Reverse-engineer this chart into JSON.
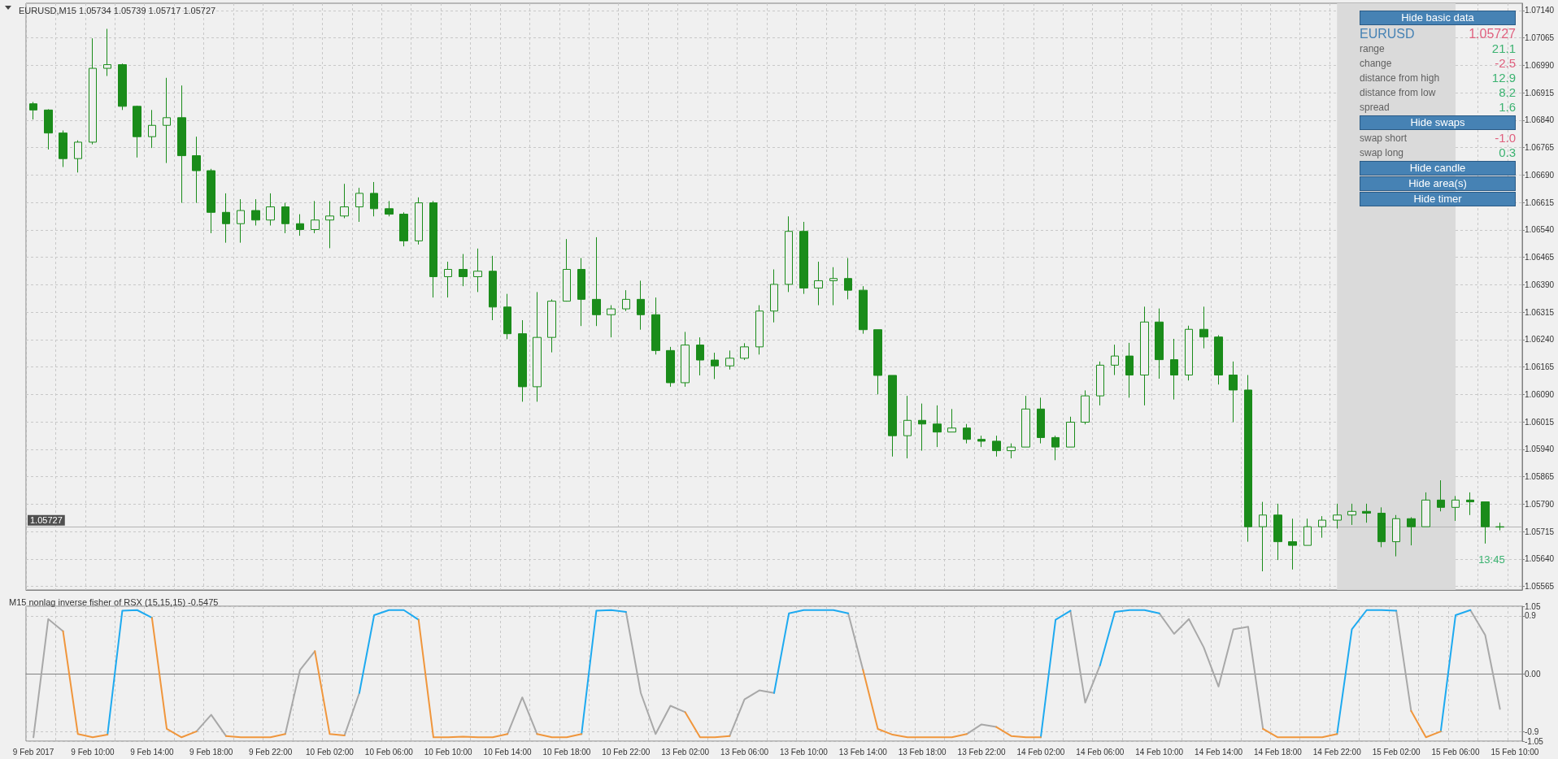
{
  "chart_data": [
    {
      "type": "candlestick",
      "title": "EURUSD,M15 1.05734 1.05739 1.05717 1.05727",
      "color": "#1a8c1a",
      "tick_labels": "y",
      "grid": true,
      "categories": [
        "9 Feb 2017",
        null,
        null,
        null,
        "9 Feb 10:00",
        null,
        null,
        null,
        "9 Feb 14:00",
        null,
        null,
        null,
        "9 Feb 18:00",
        null,
        null,
        null,
        "9 Feb 22:00",
        null,
        null,
        null,
        "10 Feb 02:00",
        null,
        null,
        null,
        "10 Feb 06:00",
        null,
        null,
        null,
        "10 Feb 10:00",
        null,
        null,
        null,
        "10 Feb 14:00",
        null,
        null,
        null,
        "10 Feb 18:00",
        null,
        null,
        null,
        "10 Feb 22:00",
        null,
        null,
        null,
        "13 Feb 02:00",
        null,
        null,
        null,
        "13 Feb 06:00",
        null,
        null,
        null,
        "13 Feb 10:00",
        null,
        null,
        null,
        "13 Feb 14:00",
        null,
        null,
        null,
        "13 Feb 18:00",
        null,
        null,
        null,
        "13 Feb 22:00",
        null,
        null,
        null,
        "14 Feb 02:00",
        null,
        null,
        null,
        "14 Feb 06:00",
        null,
        null,
        null,
        "14 Feb 10:00",
        null,
        null,
        null,
        "14 Feb 14:00",
        null,
        null,
        null,
        "14 Feb 18:00",
        null,
        null,
        null,
        "14 Feb 22:00",
        null,
        null,
        null,
        "15 Feb 02:00",
        null,
        null,
        null,
        "15 Feb 06:00",
        null,
        null,
        null,
        "15 Feb 10:00"
      ],
      "ohlc": [
        [
          1.06885,
          1.0689,
          1.06842,
          1.06868
        ],
        [
          1.06868,
          1.0687,
          1.0676,
          1.06805
        ],
        [
          1.06805,
          1.06812,
          1.06712,
          1.06735
        ],
        [
          1.06735,
          1.06785,
          1.06697,
          1.0678
        ],
        [
          1.0678,
          1.07064,
          1.06774,
          1.06982
        ],
        [
          1.06982,
          1.0709,
          1.06961,
          1.06992
        ],
        [
          1.06992,
          1.06995,
          1.06868,
          1.06878
        ],
        [
          1.06878,
          1.0688,
          1.06738,
          1.06795
        ],
        [
          1.06795,
          1.06868,
          1.06764,
          1.06826
        ],
        [
          1.06826,
          1.06956,
          1.06723,
          1.06847
        ],
        [
          1.06847,
          1.06935,
          1.06614,
          1.06743
        ],
        [
          1.06743,
          1.06795,
          1.06614,
          1.06702
        ],
        [
          1.06702,
          1.06707,
          1.06531,
          1.06588
        ],
        [
          1.06588,
          1.0664,
          1.06505,
          1.06557
        ],
        [
          1.06557,
          1.06624,
          1.06505,
          1.06593
        ],
        [
          1.06593,
          1.06624,
          1.06552,
          1.06567
        ],
        [
          1.06567,
          1.0664,
          1.06552,
          1.06603
        ],
        [
          1.06603,
          1.06614,
          1.06531,
          1.06557
        ],
        [
          1.06557,
          1.06583,
          1.06524,
          1.06541
        ],
        [
          1.06541,
          1.06619,
          1.06531,
          1.06567
        ],
        [
          1.06567,
          1.06619,
          1.0649,
          1.06578
        ],
        [
          1.06578,
          1.06666,
          1.06572,
          1.06603
        ],
        [
          1.06603,
          1.06655,
          1.06562,
          1.0664
        ],
        [
          1.0664,
          1.06671,
          1.06577,
          1.06598
        ],
        [
          1.06598,
          1.06619,
          1.06577,
          1.06583
        ],
        [
          1.06583,
          1.06588,
          1.06495,
          1.0651
        ],
        [
          1.0651,
          1.06629,
          1.065,
          1.06614
        ],
        [
          1.06614,
          1.06619,
          1.06355,
          1.06412
        ],
        [
          1.06412,
          1.06453,
          1.06355,
          1.06432
        ],
        [
          1.06432,
          1.06474,
          1.06386,
          1.06412
        ],
        [
          1.06412,
          1.06489,
          1.0637,
          1.06427
        ],
        [
          1.06427,
          1.06469,
          1.06293,
          1.06329
        ],
        [
          1.06329,
          1.06365,
          1.06241,
          1.06256
        ],
        [
          1.06256,
          1.06293,
          1.0607,
          1.06111
        ],
        [
          1.06111,
          1.0637,
          1.0607,
          1.06246
        ],
        [
          1.06246,
          1.0635,
          1.06205,
          1.06345
        ],
        [
          1.06345,
          1.06515,
          1.06344,
          1.06432
        ],
        [
          1.06432,
          1.06463,
          1.06277,
          1.0635
        ],
        [
          1.0635,
          1.0652,
          1.06277,
          1.06308
        ],
        [
          1.06308,
          1.06334,
          1.06246,
          1.06324
        ],
        [
          1.06324,
          1.06375,
          1.06318,
          1.0635
        ],
        [
          1.0635,
          1.06401,
          1.06267,
          1.06308
        ],
        [
          1.06308,
          1.06355,
          1.06199,
          1.0621
        ],
        [
          1.0621,
          1.0622,
          1.06111,
          1.06122
        ],
        [
          1.06122,
          1.06261,
          1.06111,
          1.06225
        ],
        [
          1.06225,
          1.06246,
          1.06142,
          1.06184
        ],
        [
          1.06184,
          1.06204,
          1.06132,
          1.06168
        ],
        [
          1.06168,
          1.0621,
          1.06158,
          1.06189
        ],
        [
          1.06189,
          1.0623,
          1.06184,
          1.0622
        ],
        [
          1.0622,
          1.06334,
          1.06199,
          1.06318
        ],
        [
          1.06318,
          1.06432,
          1.06287,
          1.06391
        ],
        [
          1.06391,
          1.06577,
          1.0637,
          1.06536
        ],
        [
          1.06536,
          1.06562,
          1.06365,
          1.06381
        ],
        [
          1.06381,
          1.06453,
          1.06334,
          1.06401
        ],
        [
          1.06401,
          1.06438,
          1.06334,
          1.06407
        ],
        [
          1.06407,
          1.06463,
          1.0635,
          1.06375
        ],
        [
          1.06375,
          1.06386,
          1.06256,
          1.06267
        ],
        [
          1.06267,
          1.06267,
          1.0609,
          1.06142
        ],
        [
          1.06142,
          1.06142,
          1.0592,
          1.05977
        ],
        [
          1.05977,
          1.06086,
          1.05915,
          1.06019
        ],
        [
          1.06019,
          1.06065,
          1.05936,
          1.06009
        ],
        [
          1.06009,
          1.0606,
          1.05946,
          1.05987
        ],
        [
          1.05987,
          1.0605,
          1.05987,
          1.05998
        ],
        [
          1.05998,
          1.06009,
          1.05956,
          1.05967
        ],
        [
          1.05967,
          1.05977,
          1.05946,
          1.05962
        ],
        [
          1.05962,
          1.05977,
          1.0592,
          1.05936
        ],
        [
          1.05936,
          1.05956,
          1.05915,
          1.05946
        ],
        [
          1.05946,
          1.06086,
          1.05946,
          1.0605
        ],
        [
          1.0605,
          1.06081,
          1.05956,
          1.05972
        ],
        [
          1.05972,
          1.05977,
          1.0591,
          1.05946
        ],
        [
          1.05946,
          1.06029,
          1.05946,
          1.06014
        ],
        [
          1.06014,
          1.06101,
          1.06008,
          1.06086
        ],
        [
          1.06086,
          1.0618,
          1.0606,
          1.0617
        ],
        [
          1.0617,
          1.06226,
          1.06143,
          1.06195
        ],
        [
          1.06195,
          1.06231,
          1.06081,
          1.06143
        ],
        [
          1.06143,
          1.0633,
          1.0606,
          1.06288
        ],
        [
          1.06288,
          1.06325,
          1.06133,
          1.06185
        ],
        [
          1.06185,
          1.06242,
          1.06076,
          1.06143
        ],
        [
          1.06143,
          1.06278,
          1.06128,
          1.06268
        ],
        [
          1.06268,
          1.0633,
          1.06216,
          1.06247
        ],
        [
          1.06247,
          1.06252,
          1.06117,
          1.06143
        ],
        [
          1.06143,
          1.0618,
          1.06014,
          1.06102
        ],
        [
          1.06102,
          1.06143,
          1.05687,
          1.05728
        ],
        [
          1.05728,
          1.05796,
          1.05606,
          1.0576
        ],
        [
          1.0576,
          1.05791,
          1.05637,
          1.05687
        ],
        [
          1.05687,
          1.0575,
          1.05611,
          1.05677
        ],
        [
          1.05677,
          1.0575,
          1.05677,
          1.05728
        ],
        [
          1.05728,
          1.05757,
          1.05698,
          1.05746
        ],
        [
          1.05746,
          1.05791,
          1.05723,
          1.0576
        ],
        [
          1.0576,
          1.05791,
          1.05733,
          1.0577
        ],
        [
          1.0577,
          1.05791,
          1.05739,
          1.05765
        ],
        [
          1.05765,
          1.05781,
          1.05672,
          1.05687
        ],
        [
          1.05687,
          1.0576,
          1.05647,
          1.0575
        ],
        [
          1.0575,
          1.05754,
          1.05677,
          1.05728
        ],
        [
          1.05728,
          1.05822,
          1.05728,
          1.05801
        ],
        [
          1.05801,
          1.05855,
          1.0577,
          1.05781
        ],
        [
          1.05781,
          1.05812,
          1.05744,
          1.05801
        ],
        [
          1.05801,
          1.05822,
          1.0576,
          1.05796
        ],
        [
          1.05796,
          1.05796,
          1.05682,
          1.05728
        ],
        [
          1.05728,
          1.05739,
          1.05718,
          1.05727
        ],
        null
      ],
      "ylim": [
        1.05555,
        1.0716
      ],
      "yticks": [
        1.05565,
        {
          "value": 1.0564,
          "label": "1.05640"
        },
        1.05715,
        {
          "value": 1.0579,
          "label": "1.05790"
        },
        1.05865,
        {
          "value": 1.0594,
          "label": "1.05940"
        },
        1.06015,
        {
          "value": 1.0609,
          "label": "1.06090"
        },
        1.06165,
        {
          "value": 1.0624,
          "label": "1.06240"
        },
        1.06315,
        {
          "value": 1.0639,
          "label": "1.06390"
        },
        1.06465,
        {
          "value": 1.0654,
          "label": "1.06540"
        },
        1.06615,
        {
          "value": 1.0669,
          "label": "1.06690"
        },
        1.06765,
        {
          "value": 1.0684,
          "label": "1.06840"
        },
        1.06915,
        {
          "value": 1.0699,
          "label": "1.06990"
        },
        1.07065,
        {
          "value": 1.0714,
          "label": "1.07140"
        }
      ],
      "ref_lines": [
        {
          "axis": "y",
          "value": 1.05727,
          "label": "1.05727",
          "color": "#b4b4b4"
        }
      ],
      "bands": [
        {
          "axis": "x",
          "from": "14 Feb 22:00",
          "to": "15 Feb 06:00",
          "color": "#dadada"
        }
      ],
      "annotations": [
        "Hide basic data",
        "EURUSD",
        "1.05727",
        "range",
        "21.1",
        "change",
        "-2.5",
        "distance from high",
        "12.9",
        "distance from low",
        "8.2",
        "spread",
        "1.6",
        "Hide swaps",
        "swap short",
        "-1.0",
        "swap long",
        "0.3",
        "Hide candle",
        "Hide area(s)",
        "Hide timer",
        "13:45"
      ]
    },
    {
      "type": "line",
      "title": "M15 nonlag inverse fisher of RSX (15,15,15) -0.5475",
      "grid": true,
      "marker": "none",
      "categories": [
        "9 Feb 2017",
        null,
        null,
        null,
        "9 Feb 10:00",
        null,
        null,
        null,
        "9 Feb 14:00",
        null,
        null,
        null,
        "9 Feb 18:00",
        null,
        null,
        null,
        "9 Feb 22:00",
        null,
        null,
        null,
        "10 Feb 02:00",
        null,
        null,
        null,
        "10 Feb 06:00",
        null,
        null,
        null,
        "10 Feb 10:00",
        null,
        null,
        null,
        "10 Feb 14:00",
        null,
        null,
        null,
        "10 Feb 18:00",
        null,
        null,
        null,
        "10 Feb 22:00",
        null,
        null,
        null,
        "13 Feb 02:00",
        null,
        null,
        null,
        "13 Feb 06:00",
        null,
        null,
        null,
        "13 Feb 10:00",
        null,
        null,
        null,
        "13 Feb 14:00",
        null,
        null,
        null,
        "13 Feb 18:00",
        null,
        null,
        null,
        "13 Feb 22:00",
        null,
        null,
        null,
        "14 Feb 02:00",
        null,
        null,
        null,
        "14 Feb 06:00",
        null,
        null,
        null,
        "14 Feb 10:00",
        null,
        null,
        null,
        "14 Feb 14:00",
        null,
        null,
        null,
        "14 Feb 18:00",
        null,
        null,
        null,
        "14 Feb 22:00",
        null,
        null,
        null,
        "15 Feb 02:00",
        null,
        null,
        null,
        "15 Feb 06:00",
        null,
        null,
        null,
        "15 Feb 10:00"
      ],
      "ylim": [
        -1.05,
        1.05
      ],
      "yticks": [
        1.05,
        0.9,
        {
          "value": 0,
          "label": "0.00"
        },
        -0.9,
        -1.05
      ],
      "series": [
        {
          "color": "#a8a8a8",
          "values": [
            -0.99,
            0.85,
            0.66,
            null,
            null,
            null,
            null,
            null,
            null,
            null,
            null,
            -0.9,
            -0.64,
            -0.97,
            null,
            null,
            null,
            -0.94,
            0.06,
            0.35,
            null,
            -0.96,
            -0.3,
            null,
            null,
            null,
            null,
            null,
            null,
            null,
            null,
            null,
            -0.94,
            -0.37,
            -0.94,
            null,
            null,
            null,
            null,
            null,
            0.96,
            -0.3,
            -0.94,
            -0.5,
            -0.6,
            null,
            null,
            -0.97,
            -0.4,
            -0.26,
            -0.3,
            null,
            null,
            null,
            null,
            0.94,
            0.06,
            null,
            null,
            null,
            null,
            null,
            null,
            -0.94,
            -0.79,
            -0.83,
            null,
            null,
            null,
            null,
            0.98,
            -0.45,
            0.13,
            null,
            null,
            null,
            0.94,
            0.62,
            0.85,
            0.41,
            -0.2,
            0.69,
            0.73,
            -0.86,
            null,
            null,
            null,
            null,
            null,
            null,
            null,
            null,
            0.98,
            -0.58,
            null,
            null,
            null,
            0.99,
            0.6,
            -0.55,
            null
          ]
        },
        {
          "color": "#1eaaf0",
          "values": [
            null,
            null,
            null,
            null,
            null,
            -0.95,
            0.98,
            0.99,
            0.87,
            null,
            null,
            null,
            null,
            null,
            null,
            null,
            null,
            null,
            null,
            null,
            null,
            null,
            -0.3,
            0.91,
            0.99,
            0.99,
            0.84,
            null,
            null,
            null,
            null,
            null,
            null,
            null,
            null,
            null,
            null,
            -0.94,
            0.98,
            0.99,
            0.96,
            null,
            null,
            null,
            null,
            null,
            null,
            null,
            null,
            null,
            -0.3,
            0.94,
            0.99,
            0.99,
            0.99,
            0.94,
            null,
            null,
            null,
            null,
            null,
            null,
            null,
            null,
            null,
            null,
            null,
            null,
            -0.99,
            0.84,
            0.98,
            null,
            0.13,
            0.96,
            0.99,
            0.99,
            0.94,
            null,
            null,
            null,
            null,
            null,
            null,
            null,
            null,
            null,
            null,
            null,
            -0.94,
            0.69,
            0.99,
            0.99,
            0.98,
            null,
            null,
            -0.9,
            0.91,
            0.99,
            null,
            null,
            null
          ]
        },
        {
          "color": "#f0963c",
          "values": [
            null,
            null,
            0.66,
            -0.94,
            -0.99,
            -0.95,
            null,
            null,
            0.87,
            -0.86,
            -0.99,
            -0.9,
            null,
            -0.97,
            -0.99,
            -0.99,
            -0.99,
            -0.94,
            null,
            0.35,
            -0.94,
            -0.96,
            null,
            null,
            null,
            null,
            0.84,
            -0.99,
            -0.99,
            -0.98,
            -0.99,
            -0.99,
            -0.94,
            null,
            -0.94,
            -0.99,
            -0.99,
            -0.94,
            null,
            null,
            null,
            null,
            null,
            null,
            -0.6,
            -0.99,
            -0.99,
            -0.97,
            null,
            null,
            null,
            null,
            null,
            null,
            null,
            null,
            0.06,
            -0.86,
            -0.95,
            -0.99,
            -0.99,
            -0.99,
            -0.99,
            -0.94,
            null,
            -0.83,
            -0.97,
            -0.99,
            -0.99,
            null,
            null,
            null,
            null,
            null,
            null,
            null,
            null,
            null,
            null,
            null,
            null,
            null,
            null,
            -0.86,
            -0.99,
            -0.99,
            -0.99,
            -0.99,
            -0.94,
            null,
            null,
            null,
            null,
            -0.58,
            -0.99,
            -0.9,
            null,
            null,
            null,
            null,
            null
          ]
        }
      ]
    }
  ]
}
